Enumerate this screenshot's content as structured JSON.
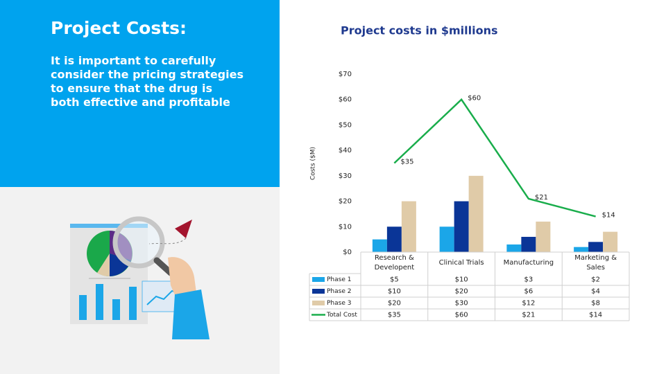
{
  "slide": {
    "title": "Project Costs:",
    "body_lines": [
      "It is important to carefully",
      "consider the pricing strategies",
      "to ensure that the drug is",
      "both effective and profitable"
    ]
  },
  "chart_data": {
    "type": "bar",
    "title": "Project costs in $millions",
    "y_label": "Costs ($M)",
    "categories": [
      "Research & Developent",
      "Clinical Trials",
      "Manufacturing",
      "Marketing & Sales"
    ],
    "series": [
      {
        "name": "Phase 1",
        "color": "#1ba6e8",
        "values": [
          5,
          10,
          3,
          2
        ],
        "value_labels": [
          "$5",
          "$10",
          "$3",
          "$2"
        ]
      },
      {
        "name": "Phase 2",
        "color": "#0a3597",
        "values": [
          10,
          20,
          6,
          4
        ],
        "value_labels": [
          "$10",
          "$20",
          "$6",
          "$4"
        ]
      },
      {
        "name": "Phase 3",
        "color": "#e0cba8",
        "values": [
          20,
          30,
          12,
          8
        ],
        "value_labels": [
          "$20",
          "$30",
          "$12",
          "$8"
        ]
      },
      {
        "name": "Total Cost",
        "type": "line",
        "color": "#19ad4b",
        "values": [
          35,
          60,
          21,
          14
        ],
        "value_labels": [
          "$35",
          "$60",
          "$21",
          "$14"
        ]
      }
    ],
    "ylim": [
      0,
      70
    ],
    "yticks": [
      {
        "value": 0,
        "label": "$0"
      },
      {
        "value": 10,
        "label": "$10"
      },
      {
        "value": 20,
        "label": "$20"
      },
      {
        "value": 30,
        "label": "$30"
      },
      {
        "value": 40,
        "label": "$40"
      },
      {
        "value": 50,
        "label": "$50"
      },
      {
        "value": 60,
        "label": "$60"
      },
      {
        "value": 70,
        "label": "$70"
      }
    ],
    "grid": false,
    "data_table": true
  }
}
